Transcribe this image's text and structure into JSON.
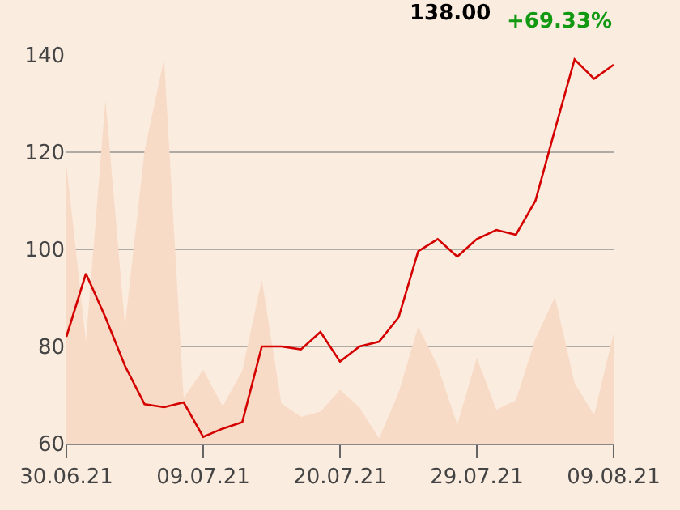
{
  "chart_data": {
    "type": "line",
    "categories": [
      "30.06.21",
      null,
      null,
      null,
      null,
      null,
      null,
      "09.07.21",
      null,
      null,
      null,
      null,
      null,
      null,
      "20.07.21",
      null,
      null,
      null,
      null,
      null,
      null,
      "29.07.21",
      null,
      null,
      null,
      null,
      null,
      null,
      "09.08.21"
    ],
    "series": [
      {
        "type": "area",
        "color": "#f8dbc6",
        "values": [
          117.5,
          81,
          130.8,
          84.3,
          120.3,
          139.3,
          69.4,
          75.2,
          67.7,
          75,
          93.8,
          68.3,
          65.5,
          66.6,
          71.1,
          67.4,
          61.1,
          70.5,
          84.1,
          76,
          63.9,
          77.7,
          67,
          68.9,
          81.6,
          90.2,
          72.5,
          65.9,
          82.7
        ]
      },
      {
        "color": "#d40000",
        "values": [
          82,
          95,
          86,
          76,
          68.1,
          67.5,
          68.5,
          61.4,
          63.1,
          64.4,
          80,
          80,
          79.4,
          83,
          76.9,
          80,
          81,
          86,
          99.6,
          102.1,
          98.5,
          102.1,
          104,
          103,
          110,
          124.7,
          139.1,
          135.1,
          138
        ]
      }
    ],
    "ylim": [
      60,
      140
    ],
    "yticks": [
      60,
      80,
      100,
      120,
      140
    ],
    "grid": "y",
    "legend": false,
    "marker": "none",
    "line_style": "solid",
    "annotations": [
      "138.00",
      "+69.33%"
    ]
  }
}
